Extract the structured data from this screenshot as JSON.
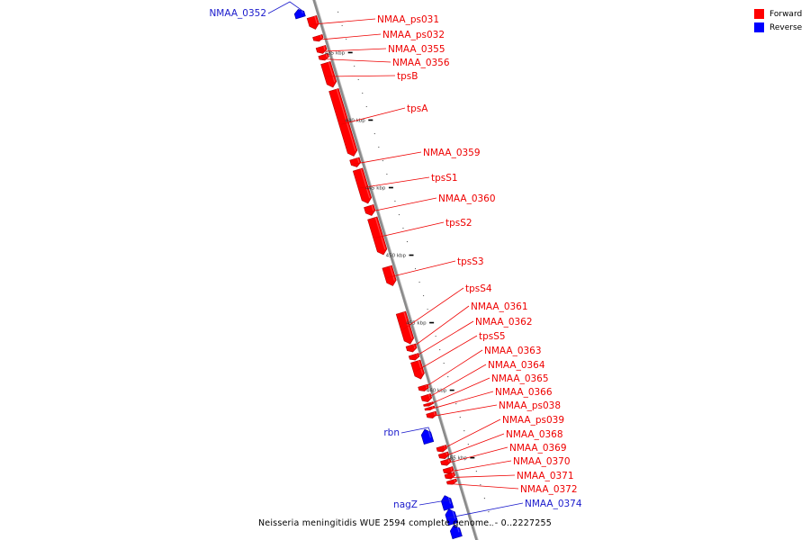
{
  "caption": "Neisseria meningitidis WUE 2594 complete genome. - 0..2227255",
  "legend": [
    {
      "label": "Forward",
      "color": "#ff0000"
    },
    {
      "label": "Reverse",
      "color": "#0000ff"
    }
  ],
  "colors": {
    "forward": "#ff0000",
    "reverse": "#0000ff",
    "backbone": "#8a8a8a",
    "label_forward": "#ee0000",
    "label_reverse": "#1a1acc"
  },
  "ticks": [
    {
      "kbp": 435,
      "label": "435 kbp"
    },
    {
      "kbp": 440,
      "label": "440 kbp"
    },
    {
      "kbp": 445,
      "label": "445 kbp"
    },
    {
      "kbp": 450,
      "label": "450 kbp"
    },
    {
      "kbp": 455,
      "label": "455 kbp"
    },
    {
      "kbp": 460,
      "label": "460 kbp"
    },
    {
      "kbp": 465,
      "label": "465 kbp"
    }
  ],
  "features": [
    {
      "name": "NMAA_0352",
      "strand": "reverse",
      "start_kbp": 431.0,
      "end_kbp": 431.6
    },
    {
      "name": "NMAA_ps031",
      "strand": "forward",
      "start_kbp": 431.8,
      "end_kbp": 432.7
    },
    {
      "name": "NMAA_ps032",
      "strand": "forward",
      "start_kbp": 433.2,
      "end_kbp": 433.6
    },
    {
      "name": "NMAA_0355",
      "strand": "forward",
      "start_kbp": 434.0,
      "end_kbp": 434.5
    },
    {
      "name": "NMAA_0356",
      "strand": "forward",
      "start_kbp": 434.6,
      "end_kbp": 435.0
    },
    {
      "name": "tpsB",
      "strand": "forward",
      "start_kbp": 435.2,
      "end_kbp": 437.0
    },
    {
      "name": "tpsA",
      "strand": "forward",
      "start_kbp": 437.2,
      "end_kbp": 442.1
    },
    {
      "name": "NMAA_0359",
      "strand": "forward",
      "start_kbp": 442.3,
      "end_kbp": 442.9
    },
    {
      "name": "tpsS1",
      "strand": "forward",
      "start_kbp": 443.1,
      "end_kbp": 445.6
    },
    {
      "name": "NMAA_0360",
      "strand": "forward",
      "start_kbp": 445.8,
      "end_kbp": 446.5
    },
    {
      "name": "tpsS2",
      "strand": "forward",
      "start_kbp": 446.7,
      "end_kbp": 449.4
    },
    {
      "name": "tpsS3",
      "strand": "forward",
      "start_kbp": 450.3,
      "end_kbp": 451.7
    },
    {
      "name": "tpsS4",
      "strand": "forward",
      "start_kbp": 453.7,
      "end_kbp": 456.0
    },
    {
      "name": "NMAA_0361",
      "strand": "forward",
      "start_kbp": 456.1,
      "end_kbp": 456.6
    },
    {
      "name": "NMAA_0362",
      "strand": "forward",
      "start_kbp": 456.8,
      "end_kbp": 457.2
    },
    {
      "name": "tpsS5",
      "strand": "forward",
      "start_kbp": 457.3,
      "end_kbp": 458.6
    },
    {
      "name": "NMAA_0363",
      "strand": "forward",
      "start_kbp": 459.1,
      "end_kbp": 459.5
    },
    {
      "name": "NMAA_0364",
      "strand": "forward",
      "start_kbp": 459.8,
      "end_kbp": 460.3
    },
    {
      "name": "NMAA_0365",
      "strand": "forward",
      "start_kbp": 460.4,
      "end_kbp": 460.6
    },
    {
      "name": "NMAA_0366",
      "strand": "forward",
      "start_kbp": 460.7,
      "end_kbp": 460.9
    },
    {
      "name": "NMAA_ps038",
      "strand": "forward",
      "start_kbp": 461.1,
      "end_kbp": 461.5
    },
    {
      "name": "rbn",
      "strand": "reverse",
      "start_kbp": 462.1,
      "end_kbp": 463.1
    },
    {
      "name": "NMAA_ps039",
      "strand": "forward",
      "start_kbp": 463.6,
      "end_kbp": 464.0
    },
    {
      "name": "NMAA_0368",
      "strand": "forward",
      "start_kbp": 464.1,
      "end_kbp": 464.5
    },
    {
      "name": "NMAA_0369",
      "strand": "forward",
      "start_kbp": 464.6,
      "end_kbp": 465.0
    },
    {
      "name": "NMAA_0370",
      "strand": "forward",
      "start_kbp": 465.2,
      "end_kbp": 465.6
    },
    {
      "name": "NMAA_0371",
      "strand": "forward",
      "start_kbp": 465.6,
      "end_kbp": 466.0
    },
    {
      "name": "NMAA_0372",
      "strand": "forward",
      "start_kbp": 466.1,
      "end_kbp": 466.4
    },
    {
      "name": "nagZ",
      "strand": "reverse",
      "start_kbp": 467.0,
      "end_kbp": 468.0
    },
    {
      "name": "NMAA_0374",
      "strand": "reverse",
      "start_kbp": 468.0,
      "end_kbp": 469.1
    },
    {
      "name": "",
      "strand": "reverse",
      "start_kbp": 469.2,
      "end_kbp": 470.1
    }
  ]
}
